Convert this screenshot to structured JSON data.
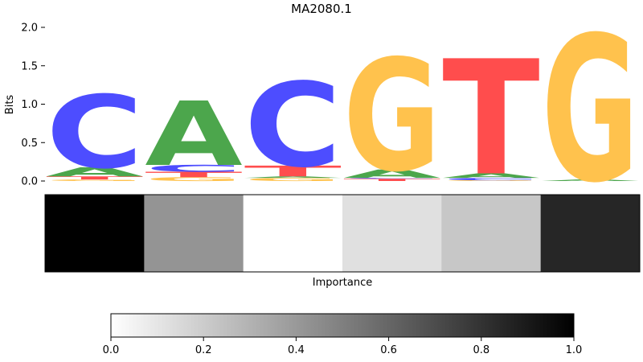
{
  "chart_data": [
    {
      "type": "sequence-logo",
      "title": "MA2080.1",
      "ylabel": "Bits",
      "ylim": [
        0,
        2.0
      ],
      "yticks": [
        0.0,
        0.5,
        1.0,
        1.5,
        2.0
      ],
      "ytick_labels": [
        "0.0",
        "0.5",
        "1.0",
        "1.5",
        "2.0"
      ],
      "colors": {
        "A": "#4ca64c",
        "C": "#4d4dff",
        "G": "#ffc24d",
        "T": "#ff4d4d"
      },
      "positions": [
        {
          "index": 1,
          "letters": [
            {
              "base": "G",
              "value": 0.02
            },
            {
              "base": "T",
              "value": 0.04
            },
            {
              "base": "A",
              "value": 0.12
            },
            {
              "base": "C",
              "value": 0.95
            }
          ]
        },
        {
          "index": 2,
          "letters": [
            {
              "base": "G",
              "value": 0.05
            },
            {
              "base": "T",
              "value": 0.07
            },
            {
              "base": "C",
              "value": 0.09
            },
            {
              "base": "A",
              "value": 0.84
            }
          ]
        },
        {
          "index": 3,
          "letters": [
            {
              "base": "G",
              "value": 0.04
            },
            {
              "base": "A",
              "value": 0.02
            },
            {
              "base": "T",
              "value": 0.14
            },
            {
              "base": "C",
              "value": 1.1
            }
          ]
        },
        {
          "index": 4,
          "letters": [
            {
              "base": "T",
              "value": 0.03
            },
            {
              "base": "C",
              "value": 0.01
            },
            {
              "base": "A",
              "value": 0.11
            },
            {
              "base": "G",
              "value": 1.46
            }
          ]
        },
        {
          "index": 5,
          "letters": [
            {
              "base": "G",
              "value": 0.01
            },
            {
              "base": "C",
              "value": 0.03
            },
            {
              "base": "A",
              "value": 0.06
            },
            {
              "base": "T",
              "value": 1.5
            }
          ]
        },
        {
          "index": 6,
          "letters": [
            {
              "base": "A",
              "value": 0.02
            },
            {
              "base": "G",
              "value": 1.9
            }
          ]
        }
      ]
    },
    {
      "type": "heatmap",
      "xlabel": "Importance",
      "values": [
        1.0,
        0.42,
        0.0,
        0.12,
        0.22,
        0.85
      ],
      "colorbar": {
        "min": 0.0,
        "max": 1.0,
        "ticks": [
          0.0,
          0.2,
          0.4,
          0.6,
          0.8,
          1.0
        ],
        "tick_labels": [
          "0.0",
          "0.2",
          "0.4",
          "0.6",
          "0.8",
          "1.0"
        ],
        "colormap": "white-to-black"
      }
    }
  ]
}
